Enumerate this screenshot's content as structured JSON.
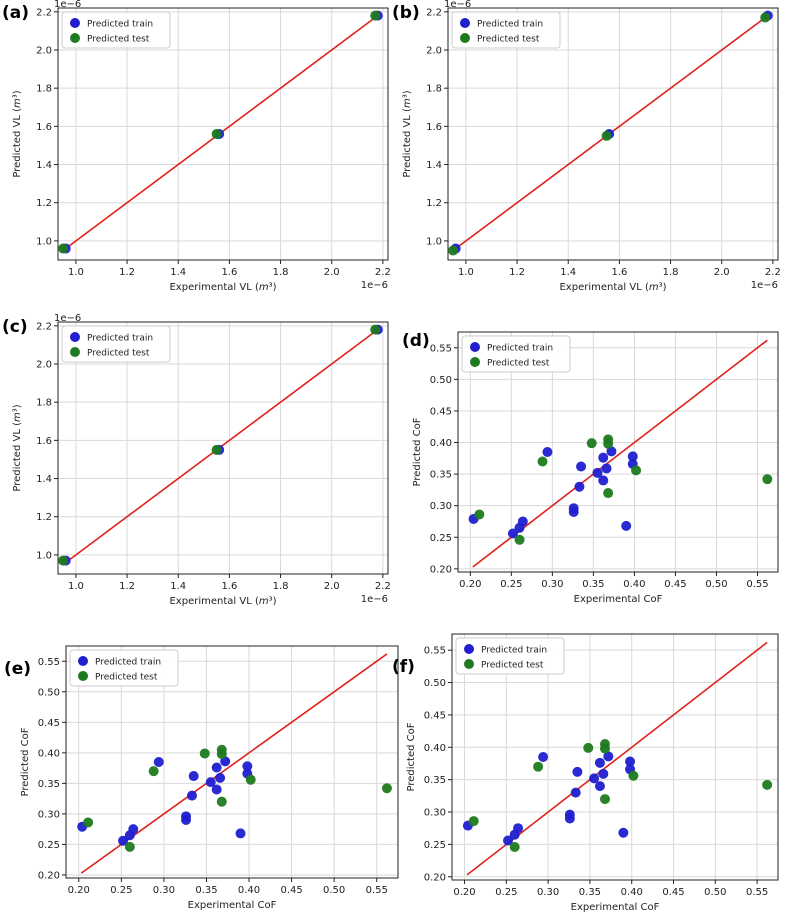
{
  "colors": {
    "train": "#1f1fd0",
    "test": "#1e7a1e",
    "fit_line": "#e0201c",
    "grid": "#d9d9d9",
    "axis": "#222222"
  },
  "legend": {
    "train_label": "Predicted train",
    "test_label": "Predicted test"
  },
  "chart_data": [
    {
      "panel": "(a)",
      "type": "scatter",
      "xlabel": "Experimental VL (m³)",
      "ylabel": "Predicted VL (m³)",
      "x_exponent": "1e−6",
      "y_exponent": "1e−6",
      "xlim": [
        0.93,
        2.22
      ],
      "ylim": [
        0.9,
        2.22
      ],
      "xticks": [
        1.0,
        1.2,
        1.4,
        1.6,
        1.8,
        2.0,
        2.2
      ],
      "yticks": [
        1.0,
        1.2,
        1.4,
        1.6,
        1.8,
        2.0,
        2.2
      ],
      "tick_decimals": 1,
      "fit_line": [
        [
          0.95,
          0.95
        ],
        [
          2.17,
          2.17
        ]
      ],
      "series": [
        {
          "name": "Predicted train",
          "points": [
            [
              0.96,
              0.96
            ],
            [
              1.56,
              1.56
            ],
            [
              2.18,
              2.18
            ]
          ]
        },
        {
          "name": "Predicted test",
          "points": [
            [
              0.95,
              0.96
            ],
            [
              1.55,
              1.56
            ],
            [
              2.17,
              2.18
            ]
          ]
        }
      ]
    },
    {
      "panel": "(b)",
      "type": "scatter",
      "xlabel": "Experimental VL (m³)",
      "ylabel": "Predicted VL (m³)",
      "x_exponent": "1e−6",
      "y_exponent": "1e−6",
      "xlim": [
        0.93,
        2.22
      ],
      "ylim": [
        0.9,
        2.22
      ],
      "xticks": [
        1.0,
        1.2,
        1.4,
        1.6,
        1.8,
        2.0,
        2.2
      ],
      "yticks": [
        1.0,
        1.2,
        1.4,
        1.6,
        1.8,
        2.0,
        2.2
      ],
      "tick_decimals": 1,
      "fit_line": [
        [
          0.95,
          0.95
        ],
        [
          2.17,
          2.17
        ]
      ],
      "series": [
        {
          "name": "Predicted train",
          "points": [
            [
              0.96,
              0.96
            ],
            [
              1.56,
              1.56
            ],
            [
              2.18,
              2.18
            ]
          ]
        },
        {
          "name": "Predicted test",
          "points": [
            [
              0.95,
              0.95
            ],
            [
              1.55,
              1.55
            ],
            [
              2.17,
              2.17
            ]
          ]
        }
      ]
    },
    {
      "panel": "(c)",
      "type": "scatter",
      "xlabel": "Experimental VL (m³)",
      "ylabel": "Predicted VL (m³)",
      "x_exponent": "1e−6",
      "y_exponent": "1e−6",
      "xlim": [
        0.93,
        2.22
      ],
      "ylim": [
        0.9,
        2.22
      ],
      "xticks": [
        1.0,
        1.2,
        1.4,
        1.6,
        1.8,
        2.0,
        2.2
      ],
      "yticks": [
        1.0,
        1.2,
        1.4,
        1.6,
        1.8,
        2.0,
        2.2
      ],
      "tick_decimals": 1,
      "fit_line": [
        [
          0.95,
          0.95
        ],
        [
          2.17,
          2.17
        ]
      ],
      "series": [
        {
          "name": "Predicted train",
          "points": [
            [
              0.96,
              0.97
            ],
            [
              1.56,
              1.55
            ],
            [
              2.18,
              2.18
            ]
          ]
        },
        {
          "name": "Predicted test",
          "points": [
            [
              0.95,
              0.97
            ],
            [
              1.55,
              1.55
            ],
            [
              2.17,
              2.18
            ]
          ]
        }
      ]
    },
    {
      "panel": "(d)",
      "type": "scatter",
      "xlabel": "Experimental CoF",
      "ylabel": "Predicted CoF",
      "x_exponent": "",
      "y_exponent": "",
      "xlim": [
        0.185,
        0.575
      ],
      "ylim": [
        0.195,
        0.575
      ],
      "xticks": [
        0.2,
        0.25,
        0.3,
        0.35,
        0.4,
        0.45,
        0.5,
        0.55
      ],
      "yticks": [
        0.2,
        0.25,
        0.3,
        0.35,
        0.4,
        0.45,
        0.5,
        0.55
      ],
      "tick_decimals": 2,
      "fit_line": [
        [
          0.203,
          0.203
        ],
        [
          0.562,
          0.562
        ]
      ],
      "series": [
        {
          "name": "Predicted train",
          "points": [
            [
              0.204,
              0.279
            ],
            [
              0.252,
              0.256
            ],
            [
              0.26,
              0.265
            ],
            [
              0.264,
              0.275
            ],
            [
              0.294,
              0.385
            ],
            [
              0.326,
              0.29
            ],
            [
              0.326,
              0.296
            ],
            [
              0.333,
              0.33
            ],
            [
              0.335,
              0.362
            ],
            [
              0.355,
              0.352
            ],
            [
              0.362,
              0.34
            ],
            [
              0.362,
              0.376
            ],
            [
              0.366,
              0.359
            ],
            [
              0.372,
              0.386
            ],
            [
              0.39,
              0.268
            ],
            [
              0.398,
              0.366
            ],
            [
              0.398,
              0.378
            ]
          ]
        },
        {
          "name": "Predicted test",
          "points": [
            [
              0.211,
              0.286
            ],
            [
              0.26,
              0.246
            ],
            [
              0.288,
              0.37
            ],
            [
              0.348,
              0.399
            ],
            [
              0.368,
              0.32
            ],
            [
              0.368,
              0.398
            ],
            [
              0.368,
              0.405
            ],
            [
              0.402,
              0.356
            ],
            [
              0.562,
              0.342
            ]
          ]
        }
      ]
    },
    {
      "panel": "(e)",
      "type": "scatter",
      "xlabel": "Experimental CoF",
      "ylabel": "Predicted CoF",
      "x_exponent": "",
      "y_exponent": "",
      "xlim": [
        0.185,
        0.575
      ],
      "ylim": [
        0.195,
        0.575
      ],
      "xticks": [
        0.2,
        0.25,
        0.3,
        0.35,
        0.4,
        0.45,
        0.5,
        0.55
      ],
      "yticks": [
        0.2,
        0.25,
        0.3,
        0.35,
        0.4,
        0.45,
        0.5,
        0.55
      ],
      "tick_decimals": 2,
      "fit_line": [
        [
          0.203,
          0.203
        ],
        [
          0.562,
          0.562
        ]
      ],
      "series": [
        {
          "name": "Predicted train",
          "points": [
            [
              0.204,
              0.279
            ],
            [
              0.252,
              0.256
            ],
            [
              0.26,
              0.265
            ],
            [
              0.264,
              0.275
            ],
            [
              0.294,
              0.385
            ],
            [
              0.326,
              0.29
            ],
            [
              0.326,
              0.296
            ],
            [
              0.333,
              0.33
            ],
            [
              0.335,
              0.362
            ],
            [
              0.355,
              0.352
            ],
            [
              0.362,
              0.34
            ],
            [
              0.362,
              0.376
            ],
            [
              0.366,
              0.359
            ],
            [
              0.372,
              0.386
            ],
            [
              0.39,
              0.268
            ],
            [
              0.398,
              0.366
            ],
            [
              0.398,
              0.378
            ]
          ]
        },
        {
          "name": "Predicted test",
          "points": [
            [
              0.211,
              0.286
            ],
            [
              0.26,
              0.246
            ],
            [
              0.288,
              0.37
            ],
            [
              0.348,
              0.399
            ],
            [
              0.368,
              0.32
            ],
            [
              0.368,
              0.398
            ],
            [
              0.368,
              0.405
            ],
            [
              0.402,
              0.356
            ],
            [
              0.562,
              0.342
            ]
          ]
        }
      ]
    },
    {
      "panel": "(f)",
      "type": "scatter",
      "xlabel": "Experimental CoF",
      "ylabel": "Predicted CoF",
      "x_exponent": "",
      "y_exponent": "",
      "xlim": [
        0.185,
        0.575
      ],
      "ylim": [
        0.195,
        0.575
      ],
      "xticks": [
        0.2,
        0.25,
        0.3,
        0.35,
        0.4,
        0.45,
        0.5,
        0.55
      ],
      "yticks": [
        0.2,
        0.25,
        0.3,
        0.35,
        0.4,
        0.45,
        0.5,
        0.55
      ],
      "tick_decimals": 2,
      "fit_line": [
        [
          0.203,
          0.203
        ],
        [
          0.562,
          0.562
        ]
      ],
      "series": [
        {
          "name": "Predicted train",
          "points": [
            [
              0.204,
              0.279
            ],
            [
              0.252,
              0.256
            ],
            [
              0.26,
              0.265
            ],
            [
              0.264,
              0.275
            ],
            [
              0.294,
              0.385
            ],
            [
              0.326,
              0.29
            ],
            [
              0.326,
              0.296
            ],
            [
              0.333,
              0.33
            ],
            [
              0.335,
              0.362
            ],
            [
              0.355,
              0.352
            ],
            [
              0.362,
              0.34
            ],
            [
              0.362,
              0.376
            ],
            [
              0.366,
              0.359
            ],
            [
              0.372,
              0.386
            ],
            [
              0.39,
              0.268
            ],
            [
              0.398,
              0.366
            ],
            [
              0.398,
              0.378
            ]
          ]
        },
        {
          "name": "Predicted test",
          "points": [
            [
              0.211,
              0.286
            ],
            [
              0.26,
              0.246
            ],
            [
              0.288,
              0.37
            ],
            [
              0.348,
              0.399
            ],
            [
              0.368,
              0.32
            ],
            [
              0.368,
              0.398
            ],
            [
              0.368,
              0.405
            ],
            [
              0.402,
              0.356
            ],
            [
              0.562,
              0.342
            ]
          ]
        }
      ]
    }
  ]
}
